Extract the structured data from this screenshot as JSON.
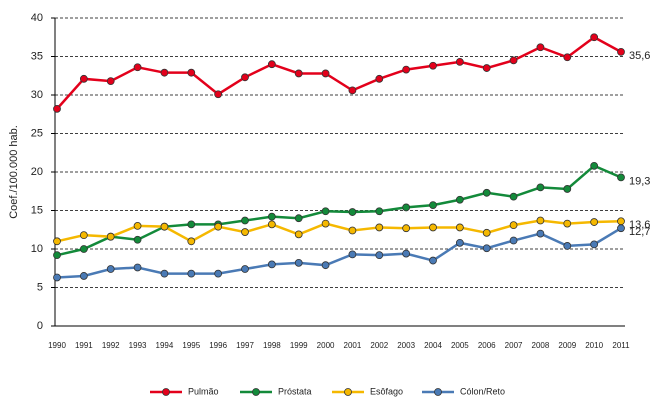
{
  "chart_data": {
    "type": "line",
    "y_label": "Coef./100.000 hab.",
    "categories": [
      "1990",
      "1991",
      "1992",
      "1993",
      "1994",
      "1995",
      "1996",
      "1997",
      "1998",
      "1999",
      "2000",
      "2001",
      "2002",
      "2003",
      "2004",
      "2005",
      "2006",
      "2007",
      "2008",
      "2009",
      "2010",
      "2011"
    ],
    "series": [
      {
        "name": "Pulmão",
        "color": "#e3001b",
        "values": [
          28.2,
          32.1,
          31.8,
          33.6,
          32.9,
          32.9,
          30.1,
          32.3,
          34.0,
          32.8,
          32.8,
          30.6,
          32.1,
          33.3,
          33.8,
          34.3,
          33.5,
          34.5,
          36.2,
          34.9,
          37.5,
          35.6
        ],
        "value_labels": [
          null,
          null,
          null,
          null,
          null,
          null,
          null,
          null,
          null,
          null,
          null,
          null,
          null,
          null,
          null,
          null,
          null,
          null,
          null,
          null,
          null,
          "35,6"
        ]
      },
      {
        "name": "Próstata",
        "color": "#138a3a",
        "values": [
          9.2,
          10.0,
          11.6,
          11.2,
          12.9,
          13.2,
          13.2,
          13.7,
          14.2,
          14.0,
          14.9,
          14.8,
          14.9,
          15.4,
          15.7,
          16.4,
          17.3,
          16.8,
          18.0,
          17.8,
          20.8,
          19.3
        ],
        "value_labels": [
          null,
          null,
          null,
          null,
          null,
          null,
          null,
          null,
          null,
          null,
          null,
          null,
          null,
          null,
          null,
          null,
          null,
          null,
          null,
          null,
          null,
          "19,3"
        ]
      },
      {
        "name": "Esôfago",
        "color": "#f5b800",
        "values": [
          11.0,
          11.8,
          11.6,
          13.0,
          12.9,
          11.0,
          12.9,
          12.2,
          13.2,
          11.9,
          13.3,
          12.4,
          12.8,
          12.7,
          12.8,
          12.8,
          12.1,
          13.1,
          13.7,
          13.3,
          13.5,
          13.6
        ],
        "value_labels": [
          null,
          null,
          null,
          null,
          null,
          null,
          null,
          null,
          null,
          null,
          null,
          null,
          null,
          null,
          null,
          null,
          null,
          null,
          null,
          null,
          null,
          "13,6"
        ]
      },
      {
        "name": "Cólon/Reto",
        "color": "#4a7ab5",
        "values": [
          6.3,
          6.5,
          7.4,
          7.6,
          6.8,
          6.8,
          6.8,
          7.4,
          8.0,
          8.2,
          7.9,
          9.3,
          9.2,
          9.4,
          8.5,
          10.8,
          10.1,
          11.1,
          12.0,
          10.4,
          10.6,
          12.7
        ],
        "value_labels": [
          null,
          null,
          null,
          null,
          null,
          null,
          null,
          null,
          null,
          null,
          null,
          null,
          null,
          null,
          null,
          null,
          null,
          null,
          null,
          null,
          null,
          "12,7"
        ]
      }
    ],
    "ylim": [
      0,
      40
    ],
    "yticks": [
      0,
      5,
      10,
      15,
      20,
      25,
      30,
      35,
      40
    ],
    "grid": true
  }
}
